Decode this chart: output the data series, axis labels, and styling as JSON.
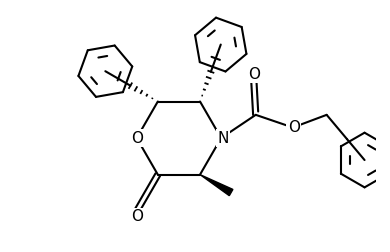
{
  "background": "#ffffff",
  "line_color": "#000000",
  "line_width": 1.5,
  "figure_size": [
    3.9,
    2.52
  ],
  "dpi": 100,
  "xlim": [
    -4.2,
    4.8
  ],
  "ylim": [
    -3.0,
    3.2
  ]
}
